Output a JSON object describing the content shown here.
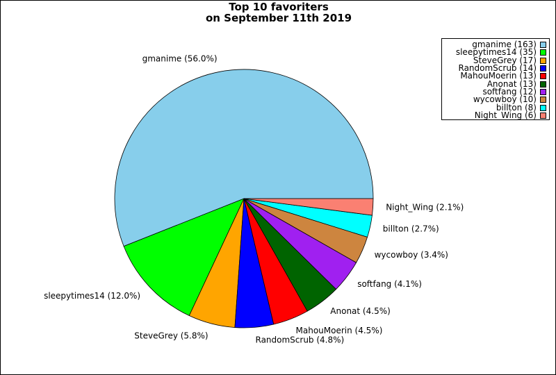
{
  "chart_data": {
    "type": "pie",
    "title": "Top 10 favoriters\non September 11th 2019",
    "slices": [
      {
        "name": "gmanime",
        "value": 163,
        "percent": "56.0%",
        "color": "#87CEEB"
      },
      {
        "name": "sleepytimes14",
        "value": 35,
        "percent": "12.0%",
        "color": "#00FF00"
      },
      {
        "name": "SteveGrey",
        "value": 17,
        "percent": "5.8%",
        "color": "#FFA500"
      },
      {
        "name": "RandomScrub",
        "value": 14,
        "percent": "4.8%",
        "color": "#0000FF"
      },
      {
        "name": "MahouMoerin",
        "value": 13,
        "percent": "4.5%",
        "color": "#FF0000"
      },
      {
        "name": "Anonat",
        "value": 13,
        "percent": "4.5%",
        "color": "#006400"
      },
      {
        "name": "softfang",
        "value": 12,
        "percent": "4.1%",
        "color": "#A020F0"
      },
      {
        "name": "wycowboy",
        "value": 10,
        "percent": "3.4%",
        "color": "#CD853F"
      },
      {
        "name": "billton",
        "value": 8,
        "percent": "2.7%",
        "color": "#00FFFF"
      },
      {
        "name": "Night_Wing",
        "value": 6,
        "percent": "2.1%",
        "color": "#FA8072"
      }
    ],
    "legend_position": "top-right"
  }
}
